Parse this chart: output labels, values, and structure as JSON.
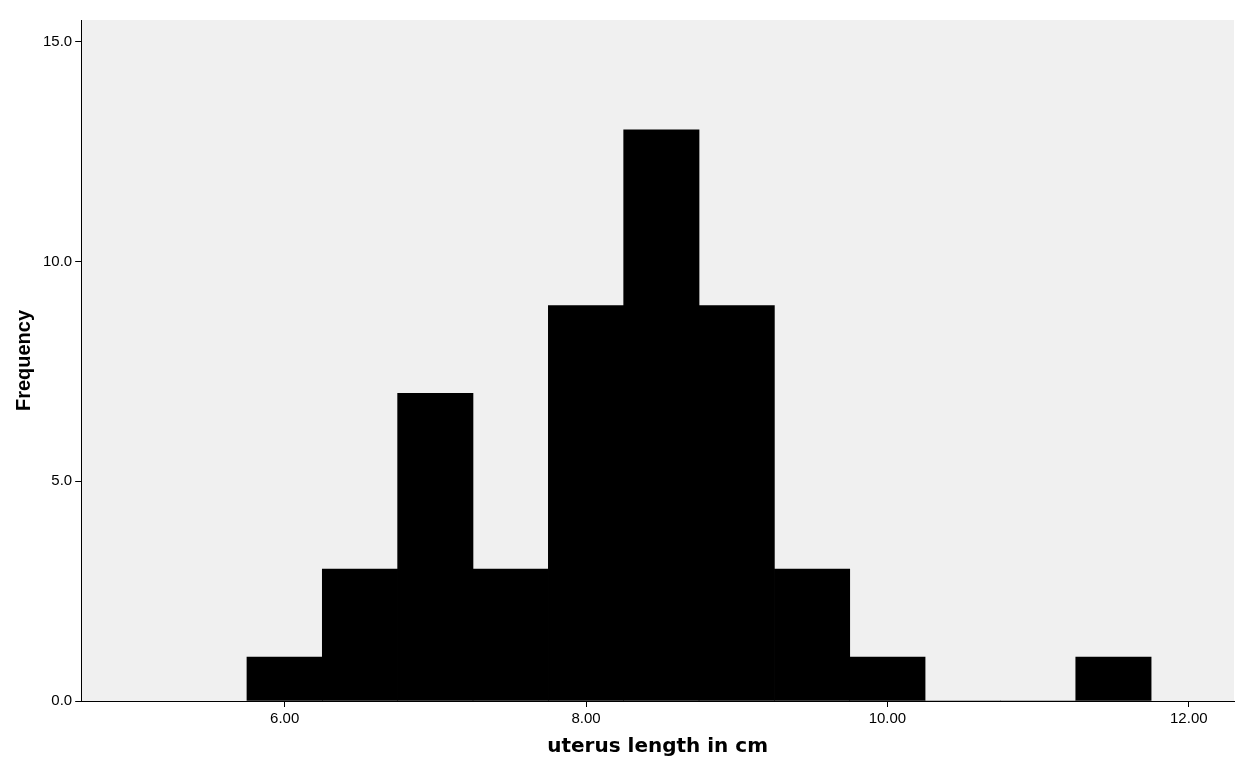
{
  "chart_data": {
    "type": "histogram",
    "xlabel": "uterus length in cm",
    "ylabel": "Frequency",
    "bins": [
      5.75,
      6.25,
      6.75,
      7.25,
      7.75,
      8.25,
      8.75,
      9.25,
      9.75,
      10.25,
      10.75,
      11.25,
      11.75
    ],
    "values": [
      1,
      3,
      7,
      3,
      9,
      13,
      9,
      3,
      1,
      0,
      0,
      1
    ],
    "color": "#000000",
    "xlim": [
      4.65,
      12.3
    ],
    "xticks": [
      {
        "value": 6,
        "label": "6.00"
      },
      {
        "value": 8,
        "label": "8.00"
      },
      {
        "value": 10,
        "label": "10.00"
      },
      {
        "value": 12,
        "label": "12.00"
      }
    ],
    "ylim": [
      0,
      15.5
    ],
    "yticks": [
      {
        "value": 0,
        "label": "0.0"
      },
      {
        "value": 5,
        "label": "5.0"
      },
      {
        "value": 10,
        "label": "10.0"
      },
      {
        "value": 15,
        "label": "15.0"
      }
    ],
    "grid": false,
    "legend": false
  }
}
